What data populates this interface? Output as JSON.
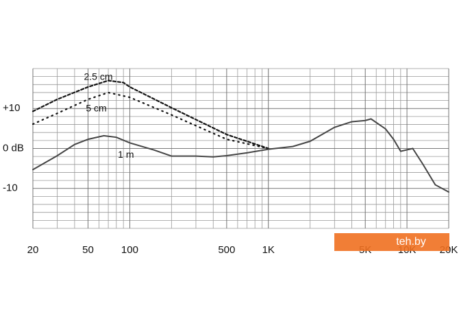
{
  "chart_data": {
    "type": "line",
    "log_x": true,
    "grid": true,
    "xlim": [
      20,
      20000
    ],
    "ylim": [
      -20,
      20
    ],
    "xticks": [
      20,
      50,
      100,
      500,
      {
        "value": 1000,
        "label": "1K"
      },
      {
        "value": 5000,
        "label": "5K"
      },
      {
        "value": 10000,
        "label": "10K"
      },
      {
        "value": 20000,
        "label": "20K"
      }
    ],
    "yticks": [
      {
        "value": 10,
        "label": "+10"
      },
      {
        "value": 0,
        "label": "0 dB"
      },
      -10
    ],
    "watermark": "teh.by",
    "series": [
      {
        "name": "2.5 cm",
        "color": "#111111",
        "style": "dashed",
        "x": [
          20,
          30,
          50,
          70,
          90,
          100,
          200,
          500,
          1000
        ],
        "values": [
          9.3,
          12.3,
          15.4,
          17.0,
          16.5,
          15.4,
          10.2,
          3.5,
          0
        ]
      },
      {
        "name": "5 cm",
        "color": "#111111",
        "style": "dotted",
        "x": [
          20,
          30,
          50,
          70,
          100,
          200,
          500,
          1000
        ],
        "values": [
          6.1,
          8.8,
          12.3,
          14.0,
          12.8,
          8.4,
          2.3,
          0
        ]
      },
      {
        "name": "1 m",
        "color": "#444444",
        "style": "solid",
        "x": [
          20,
          30,
          40,
          50,
          65,
          80,
          100,
          150,
          200,
          300,
          400,
          500,
          700,
          1000,
          1500,
          2000,
          3000,
          4000,
          5000,
          5500,
          7000,
          8000,
          9000,
          11000,
          13000,
          16000,
          20000
        ],
        "values": [
          -5.3,
          -1.8,
          1.0,
          2.3,
          3.2,
          2.8,
          1.4,
          -0.4,
          -1.9,
          -1.9,
          -2.1,
          -1.8,
          -1.1,
          -0.2,
          0.5,
          1.8,
          5.3,
          6.7,
          7.0,
          7.4,
          4.9,
          2.3,
          -0.7,
          0,
          -3.9,
          -9.1,
          -10.9
        ]
      }
    ]
  }
}
